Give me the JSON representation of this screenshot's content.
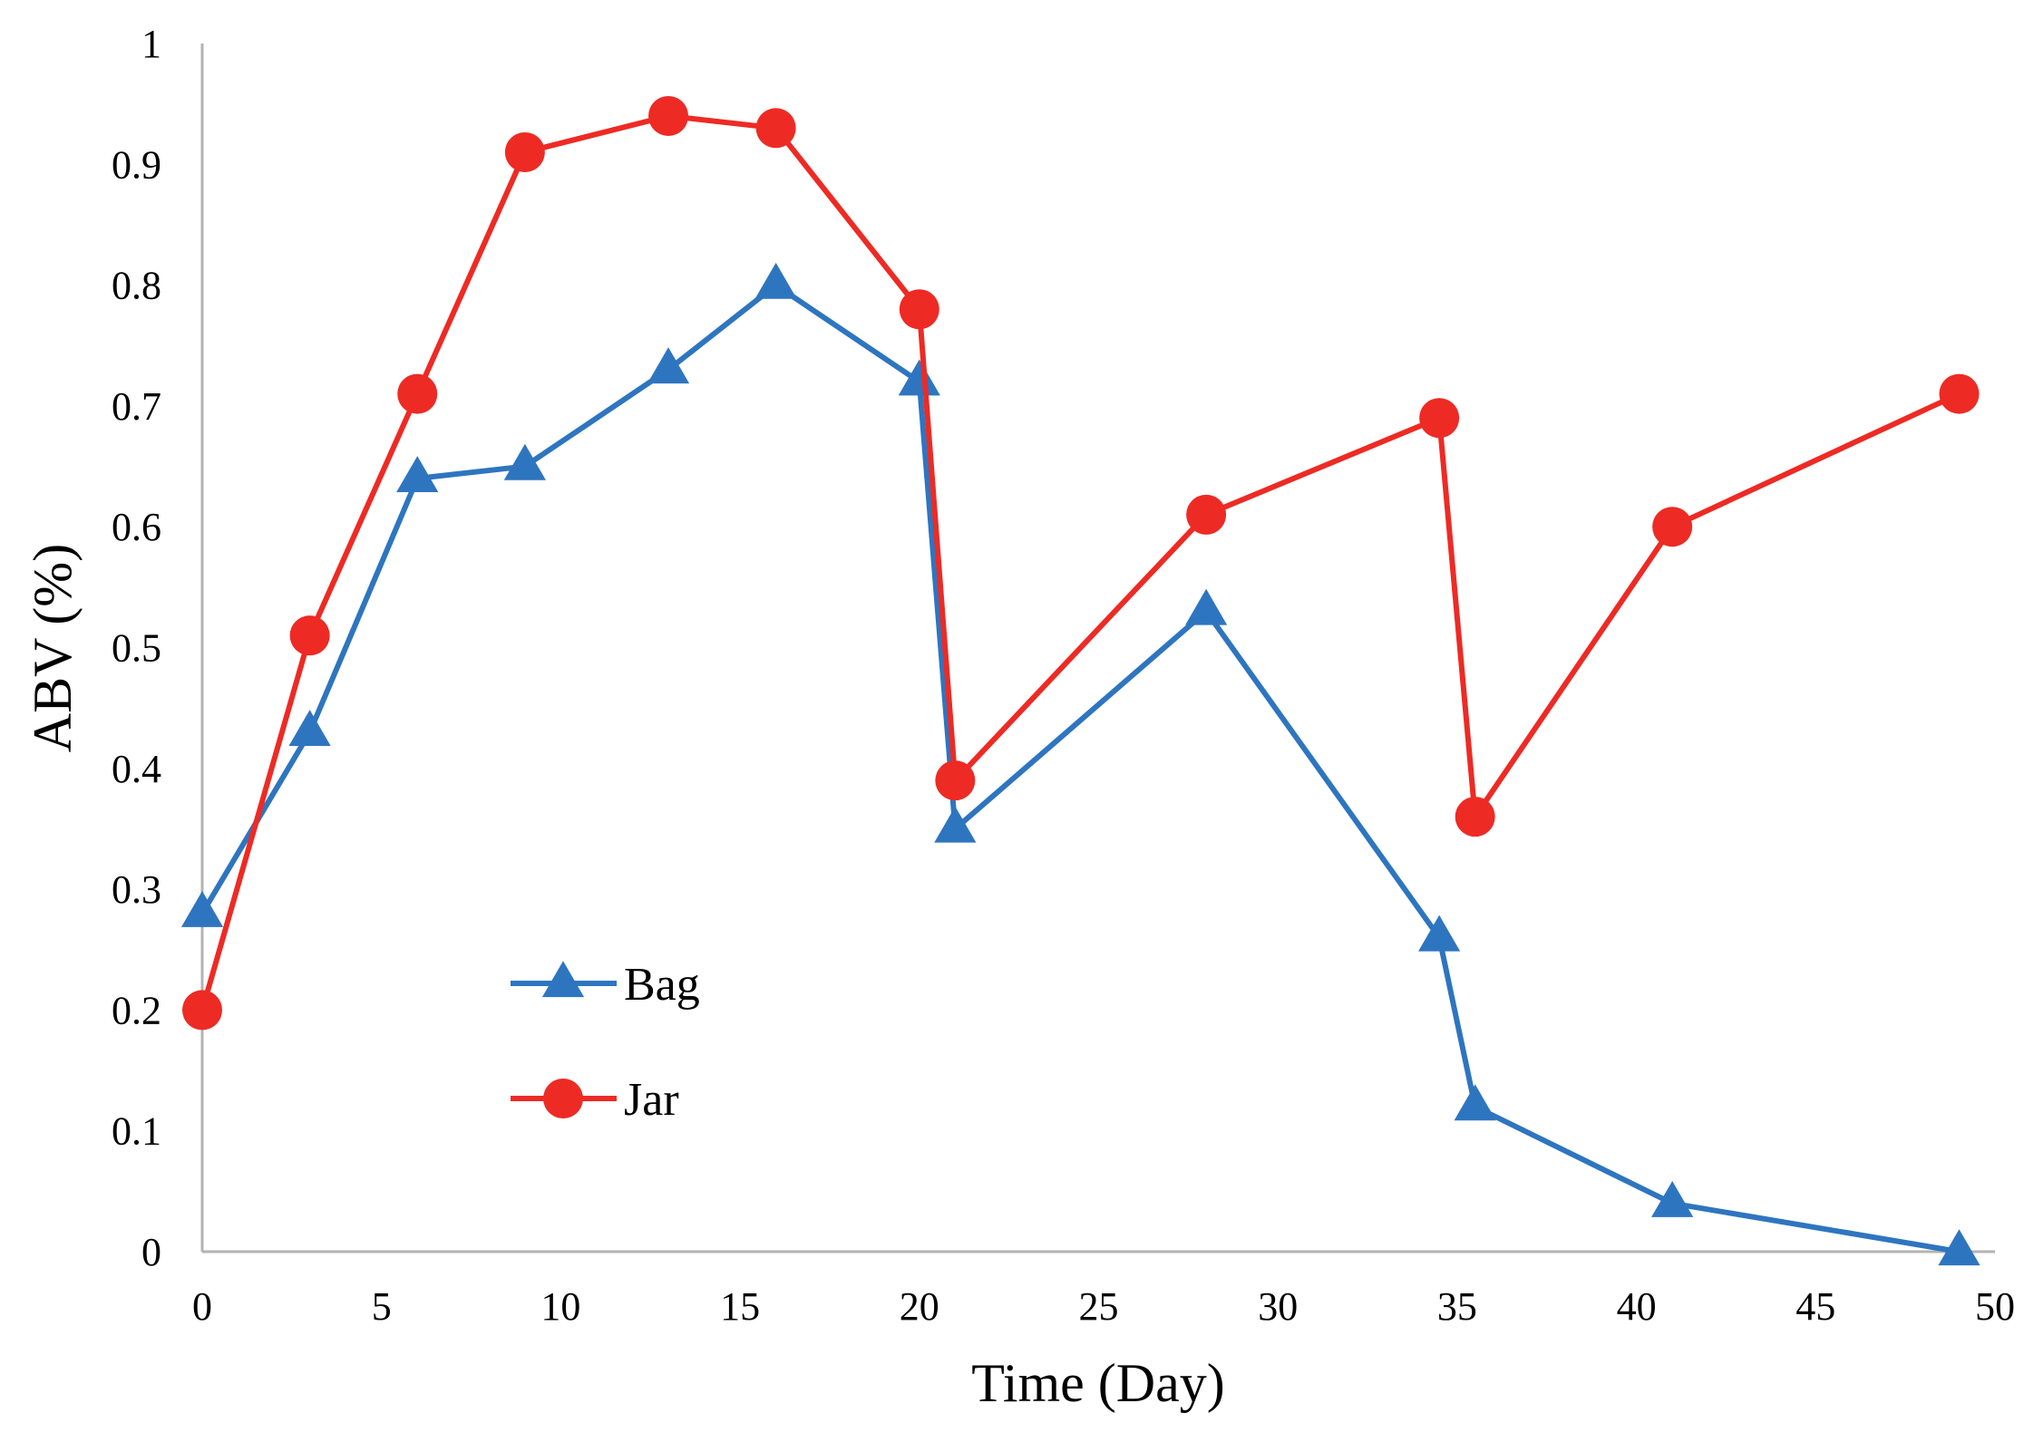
{
  "chart_data": {
    "type": "line",
    "title": "",
    "xlabel": "Time (Day)",
    "ylabel": "ABV (%)",
    "xlim": [
      0,
      50
    ],
    "ylim": [
      0,
      1
    ],
    "xticks": [
      0,
      5,
      10,
      15,
      20,
      25,
      30,
      35,
      40,
      45,
      50
    ],
    "yticks": [
      0,
      0.1,
      0.2,
      0.3,
      0.4,
      0.5,
      0.6,
      0.7,
      0.8,
      0.9,
      1
    ],
    "ytick_labels": [
      "0",
      "0.1",
      "0.2",
      "0.3",
      "0.4",
      "0.5",
      "0.6",
      "0.7",
      "0.8",
      "0.9",
      "1"
    ],
    "grid": false,
    "legend_position": "lower-left inside",
    "series": [
      {
        "name": "Bag",
        "color": "#2e75c0",
        "marker": "triangle",
        "x": [
          0,
          3,
          6,
          9,
          13,
          16,
          20,
          21,
          28,
          34.5,
          35.5,
          41,
          49
        ],
        "y": [
          0.28,
          0.43,
          0.64,
          0.65,
          0.73,
          0.8,
          0.72,
          0.35,
          0.53,
          0.26,
          0.12,
          0.04,
          0.0
        ]
      },
      {
        "name": "Jar",
        "color": "#ee2a24",
        "marker": "circle",
        "x": [
          0,
          3,
          6,
          9,
          13,
          16,
          20,
          21,
          28,
          34.5,
          35.5,
          41,
          49
        ],
        "y": [
          0.2,
          0.51,
          0.71,
          0.91,
          0.94,
          0.93,
          0.78,
          0.39,
          0.61,
          0.69,
          0.36,
          0.6,
          0.71
        ]
      }
    ]
  }
}
